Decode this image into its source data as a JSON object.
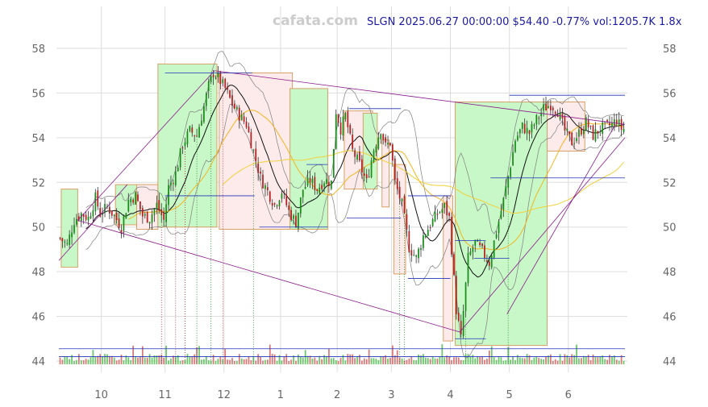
{
  "watermark": "cafata.com",
  "header": {
    "title": "SLGN 2025.06.27 00:00:00 $54.40 -0.77% vol:1205.7K 1.8x"
  },
  "colors": {
    "up": "#1a8c1a",
    "down": "#b22222",
    "wick": "#333333",
    "bb": "#7f7f7f",
    "ma_short": "#111111",
    "ma_mid": "#f2b51f",
    "ma_long": "#f2d03a",
    "box_up_fill": "#c8f7c8",
    "box_down_fill": "#fdebeb",
    "box_edge": "#d9a066",
    "trend": "#8b1a8b",
    "level": "#2233bb",
    "grid": "#dddddd",
    "vol_up": "#6cc76c",
    "vol_down": "#d97a7a"
  },
  "chart_data": {
    "type": "candlestick",
    "symbol": "SLGN",
    "title": "SLGN 2025.06.27 00:00:00 $54.40 -0.77% vol:1205.7K 1.8x",
    "xlabel": "",
    "ylabel": "",
    "ylim": [
      43.6,
      59.3
    ],
    "x_range": [
      0,
      240
    ],
    "y_ticks": [
      44,
      46,
      48,
      50,
      52,
      54,
      56,
      58
    ],
    "x_ticks": [
      {
        "x": 18,
        "label": "10"
      },
      {
        "x": 45,
        "label": "11"
      },
      {
        "x": 70,
        "label": "12"
      },
      {
        "x": 94,
        "label": "1"
      },
      {
        "x": 118,
        "label": "2"
      },
      {
        "x": 141,
        "label": "3"
      },
      {
        "x": 166,
        "label": "4"
      },
      {
        "x": 191,
        "label": "5"
      },
      {
        "x": 216,
        "label": "6"
      }
    ],
    "grid": true,
    "y_axis": "both sides",
    "anchors": [
      [
        0,
        49.5
      ],
      [
        3,
        49.2
      ],
      [
        6,
        50.3
      ],
      [
        9,
        50.6
      ],
      [
        12,
        50.4
      ],
      [
        15,
        51.3
      ],
      [
        17,
        50.6
      ],
      [
        20,
        50.9
      ],
      [
        23,
        50.5
      ],
      [
        26,
        50.0
      ],
      [
        29,
        51.2
      ],
      [
        32,
        51.4
      ],
      [
        35,
        50.5
      ],
      [
        38,
        50.4
      ],
      [
        41,
        51.0
      ],
      [
        44,
        50.3
      ],
      [
        46,
        51.8
      ],
      [
        49,
        52.4
      ],
      [
        52,
        53.7
      ],
      [
        55,
        54.3
      ],
      [
        58,
        54.1
      ],
      [
        61,
        55.4
      ],
      [
        63,
        56.3
      ],
      [
        65,
        56.9
      ],
      [
        67,
        56.7
      ],
      [
        70,
        56.2
      ],
      [
        73,
        55.5
      ],
      [
        76,
        55.0
      ],
      [
        79,
        54.6
      ],
      [
        82,
        53.4
      ],
      [
        85,
        52.2
      ],
      [
        88,
        51.6
      ],
      [
        91,
        51.0
      ],
      [
        94,
        51.6
      ],
      [
        97,
        50.7
      ],
      [
        100,
        50.2
      ],
      [
        103,
        51.7
      ],
      [
        106,
        52.1
      ],
      [
        109,
        51.7
      ],
      [
        112,
        52.1
      ],
      [
        115,
        52.0
      ],
      [
        117,
        55.2
      ],
      [
        119,
        54.4
      ],
      [
        121,
        55.0
      ],
      [
        124,
        53.4
      ],
      [
        127,
        52.8
      ],
      [
        130,
        52.0
      ],
      [
        133,
        53.5
      ],
      [
        136,
        54.4
      ],
      [
        138,
        53.6
      ],
      [
        140,
        53.8
      ],
      [
        142,
        52.0
      ],
      [
        145,
        51.0
      ],
      [
        148,
        49.1
      ],
      [
        151,
        48.6
      ],
      [
        154,
        49.6
      ],
      [
        157,
        50.1
      ],
      [
        160,
        50.6
      ],
      [
        163,
        50.9
      ],
      [
        165,
        50.4
      ],
      [
        168,
        46.3
      ],
      [
        170,
        45.0
      ],
      [
        173,
        48.6
      ],
      [
        176,
        49.3
      ],
      [
        179,
        48.9
      ],
      [
        182,
        48.4
      ],
      [
        185,
        49.8
      ],
      [
        188,
        51.2
      ],
      [
        191,
        52.8
      ],
      [
        193,
        53.9
      ],
      [
        196,
        54.5
      ],
      [
        199,
        54.2
      ],
      [
        202,
        54.8
      ],
      [
        205,
        55.3
      ],
      [
        208,
        55.5
      ],
      [
        211,
        55.2
      ],
      [
        214,
        54.3
      ],
      [
        217,
        53.8
      ],
      [
        220,
        54.2
      ],
      [
        223,
        54.7
      ],
      [
        226,
        54.1
      ],
      [
        229,
        54.4
      ],
      [
        232,
        54.5
      ],
      [
        234,
        54.6
      ],
      [
        236,
        54.8
      ],
      [
        238,
        54.4
      ]
    ],
    "candles_count": 240,
    "boxes": [
      {
        "x0": 1,
        "x1": 8,
        "y0": 48.2,
        "y1": 51.7,
        "dir": "up"
      },
      {
        "x0": 24,
        "x1": 33,
        "y0": 50.1,
        "y1": 51.9,
        "dir": "up"
      },
      {
        "x0": 33,
        "x1": 42,
        "y0": 49.9,
        "y1": 51.9,
        "dir": "down"
      },
      {
        "x0": 42,
        "x1": 67,
        "y0": 50.0,
        "y1": 57.3,
        "dir": "up"
      },
      {
        "x0": 68,
        "x1": 99,
        "y0": 49.9,
        "y1": 56.9,
        "dir": "down"
      },
      {
        "x0": 98,
        "x1": 114,
        "y0": 49.9,
        "y1": 56.2,
        "dir": "up"
      },
      {
        "x0": 121,
        "x1": 133,
        "y0": 51.7,
        "y1": 55.2,
        "dir": "down"
      },
      {
        "x0": 129,
        "x1": 135,
        "y0": 51.7,
        "y1": 55.1,
        "dir": "up"
      },
      {
        "x0": 137,
        "x1": 140,
        "y0": 50.9,
        "y1": 53.9,
        "dir": "down"
      },
      {
        "x0": 142,
        "x1": 147,
        "y0": 47.9,
        "y1": 52.8,
        "dir": "down"
      },
      {
        "x0": 163,
        "x1": 167,
        "y0": 44.9,
        "y1": 51.4,
        "dir": "down"
      },
      {
        "x0": 168,
        "x1": 207,
        "y0": 44.7,
        "y1": 55.6,
        "dir": "up"
      },
      {
        "x0": 207,
        "x1": 223,
        "y0": 53.4,
        "y1": 55.6,
        "dir": "down"
      }
    ],
    "trendlines": [
      {
        "x0": 8,
        "y0": 50.3,
        "x1": 66,
        "y1": 57.0
      },
      {
        "x0": 66,
        "y0": 57.0,
        "x1": 240,
        "y1": 54.6
      },
      {
        "x0": 8,
        "y0": 50.3,
        "x1": 170,
        "y1": 45.3
      },
      {
        "x0": 170,
        "y0": 45.3,
        "x1": 240,
        "y1": 54.0
      },
      {
        "x0": 0,
        "y0": 48.5,
        "x1": 29,
        "y1": 51.9
      },
      {
        "x0": 190,
        "y0": 46.1,
        "x1": 236,
        "y1": 54.6
      }
    ],
    "levels": [
      {
        "x0": 45,
        "x1": 82,
        "y": 56.9
      },
      {
        "x0": 45,
        "x1": 83,
        "y": 51.4
      },
      {
        "x0": 85,
        "x1": 114,
        "y": 50.0
      },
      {
        "x0": 105,
        "x1": 114,
        "y": 52.8
      },
      {
        "x0": 123,
        "x1": 145,
        "y": 55.3
      },
      {
        "x0": 122,
        "x1": 145,
        "y": 50.4
      },
      {
        "x0": 148,
        "x1": 166,
        "y": 51.4
      },
      {
        "x0": 148,
        "x1": 166,
        "y": 47.7
      },
      {
        "x0": 168,
        "x1": 181,
        "y": 45.0
      },
      {
        "x0": 168,
        "x1": 181,
        "y": 49.4
      },
      {
        "x0": 176,
        "x1": 191,
        "y": 48.6
      },
      {
        "x0": 183,
        "x1": 240,
        "y": 52.2
      },
      {
        "x0": 191,
        "x1": 240,
        "y": 55.9
      },
      {
        "x0": 0,
        "x1": 240,
        "y": 44.2
      },
      {
        "x0": 0,
        "x1": 240,
        "y": 44.55
      }
    ],
    "signals": [
      43,
      49,
      53,
      58,
      64,
      69,
      82,
      144,
      146,
      172,
      190
    ],
    "indicators": [
      "bollinger bands",
      "moving average (short)",
      "moving average (mid)",
      "moving average (long)",
      "volume"
    ]
  }
}
